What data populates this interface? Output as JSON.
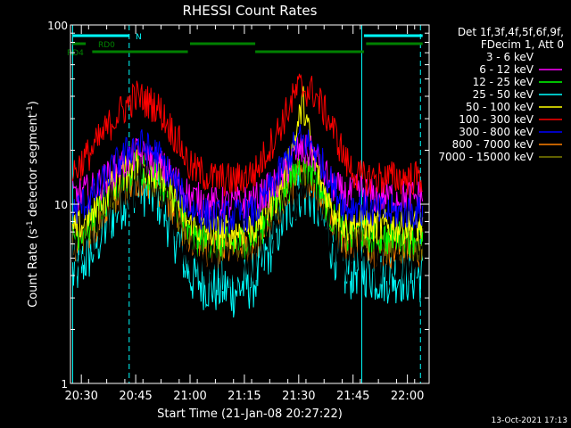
{
  "chart_data": {
    "type": "line",
    "title": "RHESSI Count Rates",
    "xlabel": "Start Time (21-Jan-08 20:27:22)",
    "ylabel": "Count Rate (s",
    "ylabel_sup": "-1",
    "ylabel_tail": " detector segment",
    "ylabel_tail_sup": "-1",
    "ylabel_close": ")",
    "yscale": "log",
    "ylim": [
      1,
      100
    ],
    "xlim_minutes": [
      20.45,
      22.1
    ],
    "x_ticks": [
      "20:30",
      "20:45",
      "21:00",
      "21:15",
      "21:30",
      "21:45",
      "22:00"
    ],
    "x_tick_minutes": [
      20.5,
      20.75,
      21.0,
      21.25,
      21.5,
      21.75,
      22.0
    ],
    "y_tick_labels": [
      "1",
      "10",
      "100"
    ],
    "y_tick_values": [
      1,
      10,
      100
    ],
    "grid": false,
    "legend_position": "right",
    "legend_header": [
      "Det 1f,3f,4f,5f,6f,9f,",
      "FDecim 1, Att 0"
    ],
    "series": [
      {
        "name": "3 - 6 keV",
        "color": "#ffffff",
        "x": [
          20.46,
          20.55,
          20.65,
          20.75,
          20.85,
          20.95,
          21.0,
          21.1,
          21.2,
          21.3,
          21.4,
          21.5,
          21.57,
          21.65,
          21.72,
          21.78,
          21.85,
          21.95,
          22.07
        ],
        "y": [
          4.8,
          6.5,
          10,
          13.5,
          12,
          7,
          5,
          4.5,
          4.5,
          5,
          8,
          12,
          11,
          6.5,
          5,
          5.5,
          4.5,
          4.5,
          5
        ]
      },
      {
        "name": "6 - 12 keV",
        "color": "#ff00ff",
        "x": [
          20.46,
          20.55,
          20.65,
          20.75,
          20.85,
          20.95,
          21.0,
          21.1,
          21.2,
          21.3,
          21.4,
          21.5,
          21.57,
          21.65,
          21.72,
          21.78,
          21.85,
          21.95,
          22.07
        ],
        "y": [
          11,
          12,
          15,
          19,
          17,
          13,
          11,
          10,
          10,
          10.5,
          13,
          20,
          19,
          13,
          11,
          12,
          11,
          11,
          11
        ]
      },
      {
        "name": "12 - 25 keV",
        "color": "#00ff00",
        "x": [
          20.46,
          20.55,
          20.65,
          20.75,
          20.85,
          20.95,
          21.0,
          21.1,
          21.2,
          21.3,
          21.4,
          21.5,
          21.57,
          21.65,
          21.72,
          21.78,
          21.85,
          21.95,
          22.07
        ],
        "y": [
          6.5,
          8,
          12,
          16,
          14,
          9,
          6.5,
          6,
          6,
          6.5,
          10,
          16,
          15,
          8.5,
          6.5,
          7,
          6.5,
          6.5,
          6.5
        ]
      },
      {
        "name": "25 - 50 keV",
        "color": "#00ffff",
        "x": [
          20.46,
          20.55,
          20.65,
          20.75,
          20.85,
          20.95,
          21.0,
          21.1,
          21.2,
          21.3,
          21.4,
          21.5,
          21.57,
          21.65,
          21.72,
          21.78,
          21.85,
          21.95,
          22.07
        ],
        "y": [
          4,
          5.5,
          9,
          13,
          11,
          6,
          4,
          3.5,
          3.3,
          3.8,
          7,
          12,
          11,
          6,
          4,
          4.5,
          4,
          4,
          4
        ]
      },
      {
        "name": "50 - 100 keV",
        "color": "#ffff00",
        "x": [
          20.46,
          20.55,
          20.65,
          20.75,
          20.85,
          20.95,
          21.0,
          21.1,
          21.2,
          21.3,
          21.4,
          21.48,
          21.52,
          21.57,
          21.65,
          21.72,
          21.78,
          21.85,
          21.95,
          22.07
        ],
        "y": [
          7,
          8.5,
          13,
          17,
          15,
          10,
          7.5,
          7,
          7,
          7.5,
          11,
          22,
          38,
          17,
          9.5,
          7.5,
          8,
          7.5,
          7.5,
          7.5
        ]
      },
      {
        "name": "100 - 300 keV",
        "color": "#ff0000",
        "x": [
          20.46,
          20.55,
          20.65,
          20.75,
          20.85,
          20.95,
          21.0,
          21.1,
          21.2,
          21.3,
          21.4,
          21.5,
          21.57,
          21.65,
          21.72,
          21.78,
          21.85,
          21.95,
          22.07
        ],
        "y": [
          15,
          20,
          30,
          40,
          35,
          22,
          16,
          14,
          13.5,
          15,
          25,
          45,
          42,
          28,
          17,
          14,
          14,
          14,
          14
        ]
      },
      {
        "name": "300 - 800 keV",
        "color": "#0000ff",
        "x": [
          20.46,
          20.55,
          20.65,
          20.75,
          20.85,
          20.95,
          21.0,
          21.1,
          21.2,
          21.3,
          21.4,
          21.5,
          21.57,
          21.65,
          21.72,
          21.78,
          21.85,
          21.95,
          22.07
        ],
        "y": [
          9,
          11,
          16,
          22,
          19,
          12,
          9.5,
          8.5,
          8.5,
          9,
          14,
          23,
          21,
          13,
          9.5,
          10,
          9,
          9,
          9
        ]
      },
      {
        "name": "800 - 7000 keV",
        "color": "#ff8000",
        "x": [
          20.46,
          20.55,
          20.65,
          20.75,
          20.85,
          20.95,
          21.0,
          21.1,
          21.2,
          21.3,
          21.4,
          21.5,
          21.57,
          21.65,
          21.72,
          21.78,
          21.85,
          21.95,
          22.07
        ],
        "y": [
          5.5,
          7,
          10.5,
          14,
          12.5,
          8,
          6,
          5.5,
          5.5,
          6,
          9,
          14,
          13,
          8,
          6,
          6.5,
          5.5,
          5.5,
          5.5
        ]
      },
      {
        "name": "7000 - 15000 keV",
        "color": "#808000",
        "x": [
          20.46,
          20.55,
          20.65,
          20.75,
          20.85,
          20.95,
          21.0,
          21.1,
          21.2,
          21.3,
          21.4,
          21.5,
          21.57,
          21.65,
          21.72,
          21.78,
          21.85,
          21.95,
          22.07
        ],
        "y": [
          6,
          7.5,
          11,
          15,
          13,
          8.5,
          6.5,
          6,
          6,
          6.5,
          9.5,
          15,
          14,
          8.5,
          6.5,
          7,
          6,
          6,
          6
        ]
      }
    ],
    "flag_bars": [
      {
        "label": "N",
        "color": "#00ffff",
        "segments": [
          [
            20.46,
            20.72
          ],
          [
            21.8,
            22.07
          ]
        ]
      },
      {
        "label": "RD0",
        "color": "#008000",
        "segments": [
          [
            20.46,
            20.52
          ],
          [
            21.0,
            21.3
          ],
          [
            21.81,
            22.07
          ]
        ]
      },
      {
        "label": "RD4",
        "color": "#008000",
        "segments": [
          [
            20.55,
            20.99
          ],
          [
            21.3,
            21.8
          ]
        ]
      }
    ],
    "vertical_markers": [
      {
        "minute": 20.46,
        "style": "solid",
        "color": "#00ffff"
      },
      {
        "minute": 20.72,
        "style": "dashed",
        "color": "#00ffff"
      },
      {
        "minute": 21.79,
        "style": "solid",
        "color": "#00ffff"
      },
      {
        "minute": 22.06,
        "style": "dashed",
        "color": "#00ffff"
      }
    ]
  },
  "footer_timestamp": "13-Oct-2021 17:13"
}
